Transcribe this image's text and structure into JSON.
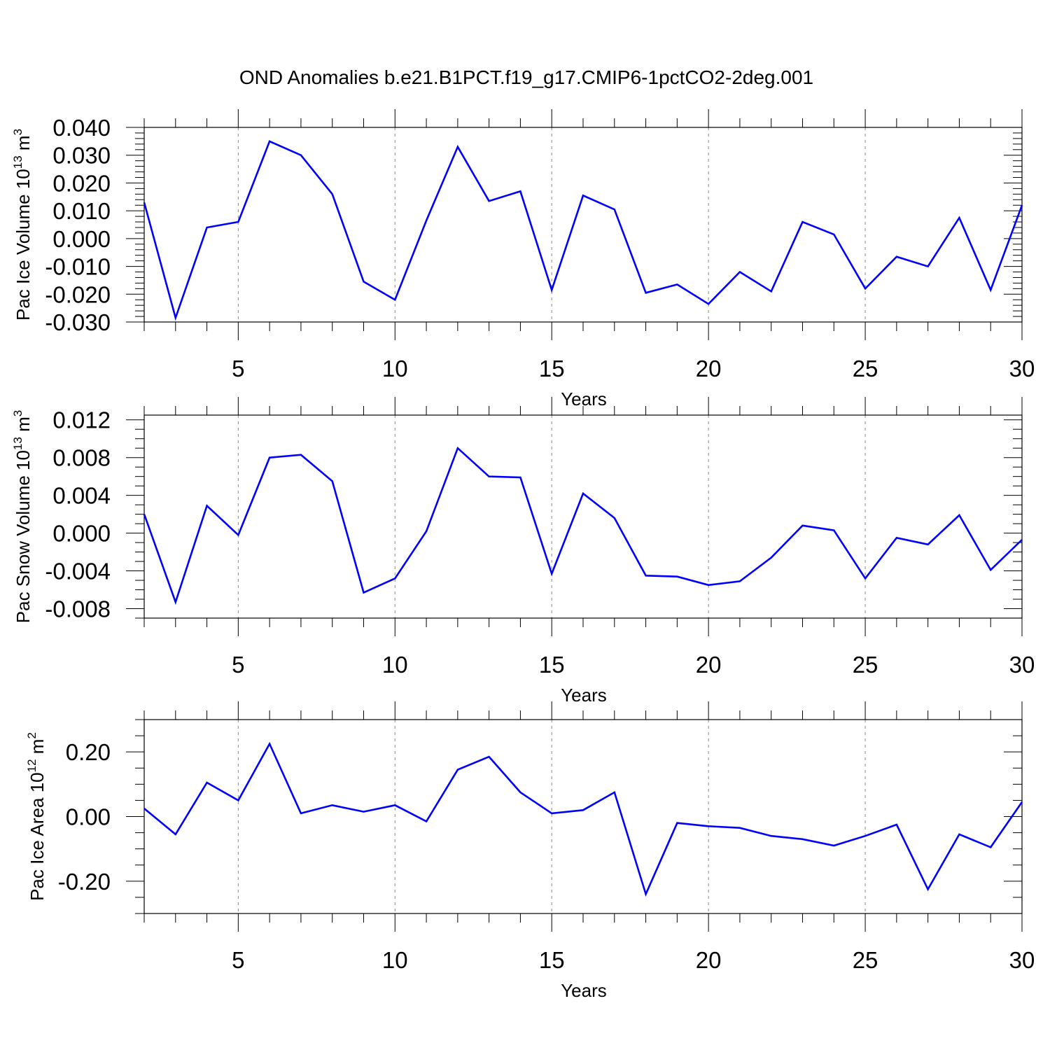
{
  "title": "OND Anomalies b.e21.B1PCT.f19_g17.CMIP6-1pctCO2-2deg.001",
  "colors": {
    "line": "#0000ff",
    "frame": "#000000",
    "grid": "#888888"
  },
  "chart_data": [
    {
      "type": "line",
      "title": "OND Anomalies b.e21.B1PCT.f19_g17.CMIP6-1pctCO2-2deg.001",
      "xlabel": "Years",
      "ylabel": "Pac Ice Volume 10",
      "ylabel_exp": "13",
      "ylabel_unit": " m",
      "ylabel_unit_exp": "3",
      "xlim": [
        2,
        30
      ],
      "ylim": [
        -0.03,
        0.04
      ],
      "xticks": [
        5,
        10,
        15,
        20,
        25,
        30
      ],
      "xtick_labels": [
        "5",
        "10",
        "15",
        "20",
        "25",
        "30"
      ],
      "yticks": [
        -0.03,
        -0.02,
        -0.01,
        0.0,
        0.01,
        0.02,
        0.03,
        0.04
      ],
      "ytick_labels": [
        "-0.030",
        "-0.020",
        "-0.010",
        "0.000",
        "0.010",
        "0.020",
        "0.030",
        "0.040"
      ],
      "grid": "vertical dashed at major x ticks",
      "x": [
        2,
        3,
        4,
        5,
        6,
        7,
        8,
        9,
        10,
        11,
        12,
        13,
        14,
        15,
        16,
        17,
        18,
        19,
        20,
        21,
        22,
        23,
        24,
        25,
        26,
        27,
        28,
        29,
        30
      ],
      "values": [
        0.013,
        -0.0285,
        0.004,
        0.006,
        0.035,
        0.03,
        0.016,
        -0.0155,
        -0.022,
        0.0065,
        0.033,
        0.0135,
        0.017,
        -0.0185,
        0.0155,
        0.0105,
        -0.0195,
        -0.0165,
        -0.0235,
        -0.012,
        -0.019,
        0.006,
        0.0015,
        -0.018,
        -0.0065,
        -0.01,
        0.0075,
        -0.0185,
        0.012
      ]
    },
    {
      "type": "line",
      "xlabel": "Years",
      "ylabel": "Pac Snow Volume 10",
      "ylabel_exp": "13",
      "ylabel_unit": " m",
      "ylabel_unit_exp": "3",
      "xlim": [
        2,
        30
      ],
      "ylim": [
        -0.009,
        0.0125
      ],
      "xticks": [
        5,
        10,
        15,
        20,
        25,
        30
      ],
      "xtick_labels": [
        "5",
        "10",
        "15",
        "20",
        "25",
        "30"
      ],
      "yticks": [
        -0.008,
        -0.004,
        0.0,
        0.004,
        0.008,
        0.012
      ],
      "ytick_labels": [
        "-0.008",
        "-0.004",
        "0.000",
        "0.004",
        "0.008",
        "0.012"
      ],
      "grid": "vertical dashed at major x ticks",
      "x": [
        2,
        3,
        4,
        5,
        6,
        7,
        8,
        9,
        10,
        11,
        12,
        13,
        14,
        15,
        16,
        17,
        18,
        19,
        20,
        21,
        22,
        23,
        24,
        25,
        26,
        27,
        28,
        29,
        30
      ],
      "values": [
        0.002,
        -0.0073,
        0.0029,
        -0.0002,
        0.008,
        0.0083,
        0.0055,
        -0.0063,
        -0.0048,
        0.0002,
        0.009,
        0.006,
        0.0059,
        -0.0043,
        0.0042,
        0.0016,
        -0.0045,
        -0.0046,
        -0.0055,
        -0.0051,
        -0.0026,
        0.0008,
        0.0003,
        -0.0048,
        -0.0005,
        -0.0012,
        0.0019,
        -0.0039,
        -0.0007
      ]
    },
    {
      "type": "line",
      "xlabel": "Years",
      "ylabel": "Pac Ice Area 10",
      "ylabel_exp": "12",
      "ylabel_unit": " m",
      "ylabel_unit_exp": "2",
      "xlim": [
        2,
        30
      ],
      "ylim": [
        -0.3,
        0.3
      ],
      "xticks": [
        5,
        10,
        15,
        20,
        25,
        30
      ],
      "xtick_labels": [
        "5",
        "10",
        "15",
        "20",
        "25",
        "30"
      ],
      "yticks": [
        -0.2,
        0.0,
        0.2
      ],
      "ytick_labels": [
        "-0.20",
        "0.00",
        "0.20"
      ],
      "grid": "vertical dashed at major x ticks",
      "x": [
        2,
        3,
        4,
        5,
        6,
        7,
        8,
        9,
        10,
        11,
        12,
        13,
        14,
        15,
        16,
        17,
        18,
        19,
        20,
        21,
        22,
        23,
        24,
        25,
        26,
        27,
        28,
        29,
        30
      ],
      "values": [
        0.025,
        -0.055,
        0.105,
        0.05,
        0.225,
        0.01,
        0.035,
        0.015,
        0.035,
        -0.015,
        0.145,
        0.185,
        0.075,
        0.01,
        0.02,
        0.075,
        -0.24,
        -0.02,
        -0.03,
        -0.035,
        -0.06,
        -0.07,
        -0.09,
        -0.06,
        -0.025,
        -0.225,
        -0.055,
        -0.095,
        0.045
      ]
    }
  ]
}
